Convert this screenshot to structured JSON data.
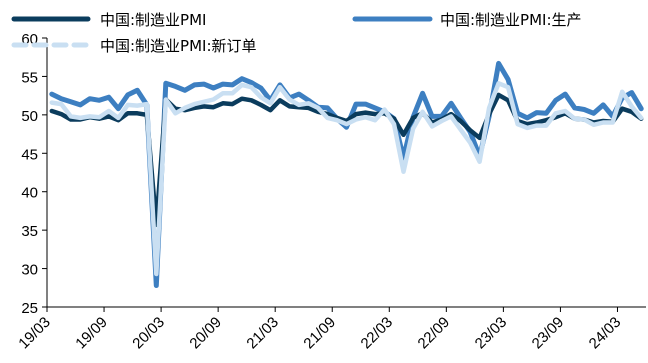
{
  "chart_data": {
    "type": "line",
    "ylim": [
      25,
      60
    ],
    "yticks": [
      25,
      30,
      35,
      40,
      45,
      50,
      55,
      60
    ],
    "xticks": [
      "19/03",
      "19/09",
      "20/03",
      "20/09",
      "21/03",
      "21/09",
      "22/03",
      "22/09",
      "23/03",
      "23/09",
      "24/03"
    ],
    "x": [
      "19/03",
      "19/04",
      "19/05",
      "19/06",
      "19/07",
      "19/08",
      "19/09",
      "19/10",
      "19/11",
      "19/12",
      "20/01",
      "20/02",
      "20/03",
      "20/04",
      "20/05",
      "20/06",
      "20/07",
      "20/08",
      "20/09",
      "20/10",
      "20/11",
      "20/12",
      "21/01",
      "21/02",
      "21/03",
      "21/04",
      "21/05",
      "21/06",
      "21/07",
      "21/08",
      "21/09",
      "21/10",
      "21/11",
      "21/12",
      "22/01",
      "22/02",
      "22/03",
      "22/04",
      "22/05",
      "22/06",
      "22/07",
      "22/08",
      "22/09",
      "22/10",
      "22/11",
      "22/12",
      "23/01",
      "23/02",
      "23/03",
      "23/04",
      "23/05",
      "23/06",
      "23/07",
      "23/08",
      "23/09",
      "23/10",
      "23/11",
      "23/12",
      "24/01",
      "24/02",
      "24/03",
      "24/04",
      "24/05"
    ],
    "series": [
      {
        "name": "中国:制造业PMI",
        "color": "#0b3c5d",
        "values": [
          50.5,
          50.1,
          49.4,
          49.4,
          49.7,
          49.5,
          49.8,
          49.3,
          50.2,
          50.2,
          50.0,
          35.7,
          52.0,
          50.8,
          50.6,
          50.9,
          51.1,
          51.0,
          51.5,
          51.4,
          52.1,
          51.9,
          51.3,
          50.6,
          51.9,
          51.1,
          51.0,
          50.9,
          50.4,
          50.1,
          49.6,
          49.2,
          50.1,
          50.3,
          50.1,
          50.2,
          49.5,
          47.4,
          49.6,
          50.2,
          49.0,
          49.4,
          50.1,
          49.2,
          48.0,
          47.0,
          50.1,
          52.6,
          51.9,
          49.2,
          48.8,
          49.0,
          49.3,
          49.7,
          50.2,
          49.5,
          49.4,
          49.0,
          49.2,
          49.1,
          50.8,
          50.4,
          49.5
        ]
      },
      {
        "name": "中国:制造业PMI:生产",
        "color": "#3d7fc1",
        "values": [
          52.7,
          52.1,
          51.7,
          51.3,
          52.1,
          51.9,
          52.3,
          50.8,
          52.6,
          53.2,
          51.3,
          27.8,
          54.1,
          53.7,
          53.2,
          53.9,
          54.0,
          53.5,
          54.0,
          53.9,
          54.7,
          54.2,
          53.5,
          51.9,
          53.9,
          52.2,
          52.7,
          51.9,
          51.0,
          50.9,
          49.5,
          48.4,
          51.4,
          51.4,
          50.9,
          50.4,
          49.5,
          44.4,
          49.7,
          52.8,
          49.8,
          49.8,
          51.5,
          49.6,
          47.8,
          44.6,
          49.8,
          56.7,
          54.6,
          50.2,
          49.6,
          50.3,
          50.2,
          51.9,
          52.7,
          50.9,
          50.7,
          50.2,
          51.3,
          49.8,
          52.2,
          52.9,
          50.8
        ]
      },
      {
        "name": "中国:制造业PMI:新订单",
        "color": "#c9dff2",
        "values": [
          51.6,
          51.4,
          49.8,
          49.6,
          49.8,
          49.7,
          50.5,
          49.6,
          51.3,
          51.2,
          51.4,
          29.3,
          52.0,
          50.2,
          50.9,
          51.4,
          51.7,
          52.0,
          52.8,
          52.8,
          53.9,
          53.6,
          52.3,
          51.5,
          53.6,
          52.0,
          51.3,
          51.5,
          50.9,
          49.6,
          49.3,
          48.8,
          49.4,
          49.7,
          49.3,
          50.7,
          48.8,
          42.6,
          48.2,
          50.4,
          48.5,
          49.2,
          49.8,
          48.1,
          46.4,
          43.9,
          50.9,
          54.1,
          53.6,
          48.8,
          48.3,
          48.6,
          48.6,
          50.2,
          50.5,
          49.5,
          49.4,
          48.7,
          49.0,
          49.0,
          53.0,
          51.1,
          49.6
        ]
      }
    ],
    "legend": {
      "placement": "top"
    }
  }
}
